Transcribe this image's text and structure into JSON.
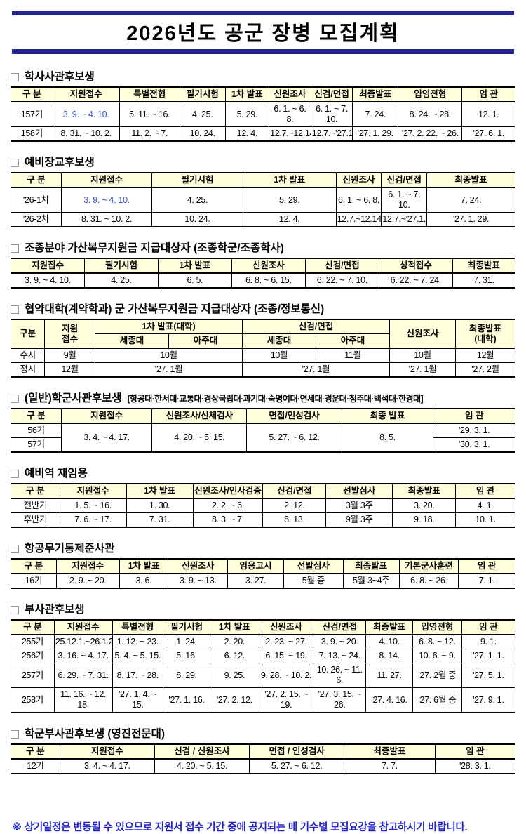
{
  "title": "2026년도 공군 장병 모집계획",
  "footer": "※ 상기일정은 변동될 수 있으므로 지원서 접수 기간 중에 공지되는 매 기수별 모집요강을 참고하시기 바랍니다.",
  "colors": {
    "bar_navy": "#23238e",
    "header_bg": "#ffffdc",
    "highlight_blue": "#3355cc",
    "footer_blue": "#2222cc"
  },
  "sections": [
    {
      "id": "haksa-officer-candidates",
      "heading": "학사사관후보생",
      "header_rows": [
        [
          "구  분",
          "지원접수",
          "특별전형",
          "필기시험",
          "1차 발표",
          "신원조사",
          "신검/면접",
          "최종발표",
          "입영전형",
          "임  관"
        ]
      ],
      "rows": [
        [
          "157기",
          {
            "t": "3. 9. ~ 4. 10.",
            "blue": true
          },
          "5. 11. ~ 16.",
          "4. 25.",
          "5. 29.",
          "6. 1. ~ 6. 8.",
          "6. 1. ~ 7. 10.",
          "7. 24.",
          "8. 24. ~ 28.",
          "12. 1."
        ],
        [
          "158기",
          "8. 31. ~ 10. 2.",
          "11. 2. ~ 7.",
          "10. 24.",
          "12. 4.",
          "12.7.~12.14.",
          "12.7.~'27.1.8.",
          "'27. 1. 29.",
          "'27. 2. 22. ~ 26.",
          "'27. 6. 1."
        ]
      ]
    },
    {
      "id": "reserve-officer-candidates",
      "heading": "예비장교후보생",
      "header_rows": [
        [
          "구  분",
          "지원접수",
          "필기시험",
          "1차 발표",
          "신원조사",
          "신검/면접",
          "최종발표"
        ]
      ],
      "rows": [
        [
          "'26-1차",
          {
            "t": "3. 9. ~ 4. 10.",
            "blue": true
          },
          "4. 25.",
          "5. 29.",
          "6. 1. ~ 6. 8.",
          "6. 1. ~ 7. 10.",
          "7. 24."
        ],
        [
          "'26-2차",
          "8. 31. ~ 10. 2.",
          "10. 24.",
          "12. 4.",
          "12.7.~12.14.",
          "12.7.~'27.1.8.",
          "'27. 1. 29."
        ]
      ]
    },
    {
      "id": "pilot-stipend-recipients",
      "heading": "조종분야 가산복무지원금 지급대상자 (조종학군/조종학사)",
      "header_rows": [
        [
          "지원접수",
          "필기시험",
          "1차 발표",
          "신원조사",
          "신검/면접",
          "성적접수",
          "최종발표"
        ]
      ],
      "rows": [
        [
          "3. 9. ~ 4. 10.",
          "4. 25.",
          "6. 5.",
          "6. 8. ~ 6. 15.",
          "6. 22. ~ 7. 10.",
          "6. 22. ~ 7. 24.",
          "7. 31."
        ]
      ]
    },
    {
      "id": "partner-university-stipend",
      "heading": "협약대학(계약학과) 군 가산복무지원금 지급대상자 (조종/정보통신)",
      "header_rows": [
        [
          {
            "t": "구분",
            "rs": 2
          },
          {
            "t": "지원\n접수",
            "rs": 2
          },
          {
            "t": "1차 발표(대학)",
            "cs": 2
          },
          {
            "t": "신검/면접",
            "cs": 2
          },
          {
            "t": "신원조사",
            "rs": 2
          },
          {
            "t": "최종발표\n(대학)",
            "rs": 2
          }
        ],
        [
          "세종대",
          "아주대",
          "세종대",
          "아주대"
        ]
      ],
      "rows": [
        [
          "수시",
          "9월",
          {
            "t": "10월",
            "cs": 2
          },
          "10월",
          "11월",
          "10월",
          "12월"
        ],
        [
          "정시",
          "12월",
          {
            "t": "'27. 1월",
            "cs": 2
          },
          {
            "t": "'27. 1월",
            "cs": 2
          },
          "'27. 1월",
          "'27. 2월"
        ]
      ]
    },
    {
      "id": "general-rotc-candidates",
      "heading": "(일반)학군사관후보생",
      "suffix": "[항공대·한서대·교통대·경상국립대·과기대·숙명여대·연세대·경운대·청주대·백석대·한경대]",
      "header_rows": [
        [
          "구  분",
          "지원접수",
          "신원조사/신체검사",
          "면접/인성검사",
          "최종 발표",
          "임  관"
        ]
      ],
      "rows": [
        [
          "56기",
          {
            "t": "3. 4. ~ 4. 17.",
            "rs": 2
          },
          {
            "t": "4. 20. ~  5. 15.",
            "rs": 2
          },
          {
            "t": "5. 27. ~ 6. 12.",
            "rs": 2
          },
          {
            "t": "8. 5.",
            "rs": 2
          },
          "'29. 3. 1."
        ],
        [
          "57기",
          "'30. 3. 1."
        ]
      ]
    },
    {
      "id": "reserve-reappointment",
      "heading": "예비역 재임용",
      "header_rows": [
        [
          "구  분",
          "지원접수",
          "1차 발표",
          "신원조사/인사검증",
          "신검/면접",
          "선발심사",
          "최종발표",
          "임  관"
        ]
      ],
      "rows": [
        [
          "전반기",
          "1. 5. ~ 16.",
          "1. 30.",
          "2. 2. ~ 6.",
          "2. 12.",
          "3월 3주",
          "3. 20.",
          "4. 1."
        ],
        [
          "후반기",
          "7. 6. ~ 17.",
          "7. 31.",
          "8. 3. ~ 7.",
          "8. 13.",
          "9월 3주",
          "9. 18.",
          "10. 1."
        ]
      ]
    },
    {
      "id": "air-weapons-controller-warrant",
      "heading": "항공무기통제준사관",
      "header_rows": [
        [
          "구  분",
          "지원접수",
          "1차 발표",
          "신원조사",
          "임용고시",
          "선발심사",
          "최종발표",
          "기본군사훈련",
          "임  관"
        ]
      ],
      "rows": [
        [
          "16기",
          "2. 9. ~ 20.",
          "3. 6.",
          "3. 9. ~ 13.",
          "3. 27.",
          "5월 중",
          "5월 3~4주",
          "6. 8. ~ 26.",
          "7. 1."
        ]
      ]
    },
    {
      "id": "nco-candidates",
      "heading": "부사관후보생",
      "header_rows": [
        [
          "구  분",
          "지원접수",
          "특별전형",
          "필기시험",
          "1차 발표",
          "신원조사",
          "신검/면접",
          "최종발표",
          "입영전형",
          "임  관"
        ]
      ],
      "rows": [
        [
          "255기",
          "25.12.1.~26.1.2.",
          "1. 12. ~ 23.",
          "1. 24.",
          "2. 20.",
          "2. 23. ~ 27.",
          "3. 9. ~ 20.",
          "4. 10.",
          "6. 8. ~ 12.",
          "9. 1."
        ],
        [
          "256기",
          "3. 16. ~ 4. 17.",
          "5. 4. ~ 5. 15.",
          "5. 16.",
          "6. 12.",
          "6. 15. ~ 19.",
          "7. 13. ~ 24.",
          "8. 14.",
          "10. 6. ~ 9.",
          "'27. 1. 1."
        ],
        [
          "257기",
          "6. 29. ~ 7. 31.",
          "8. 17. ~ 28.",
          "8. 29.",
          "9. 25.",
          "9. 28. ~ 10. 2.",
          "10. 26. ~ 11. 6.",
          "11. 27.",
          "'27. 2월 중",
          "'27. 5. 1."
        ],
        [
          "258기",
          "11. 16. ~ 12. 18.",
          "'27. 1. 4. ~ 15.",
          "'27. 1. 16.",
          "'27. 2. 12.",
          "'27. 2. 15. ~ 19.",
          "'27. 3. 15. ~ 26.",
          "'27. 4. 16.",
          "'27. 6월 중",
          "'27. 9. 1."
        ]
      ]
    },
    {
      "id": "rotc-nco-candidates-yeungjin",
      "heading": "학군부사관후보생 (영진전문대)",
      "header_rows": [
        [
          "구  분",
          "지원접수",
          "신검 / 신원조사",
          "면접 / 인성검사",
          "최종발표",
          "임  관"
        ]
      ],
      "rows": [
        [
          "12기",
          "3. 4. ~ 4. 17.",
          "4. 20. ~  5. 15.",
          "5. 27. ~ 6. 12.",
          "7. 7.",
          "'28. 3. 1."
        ]
      ]
    }
  ]
}
